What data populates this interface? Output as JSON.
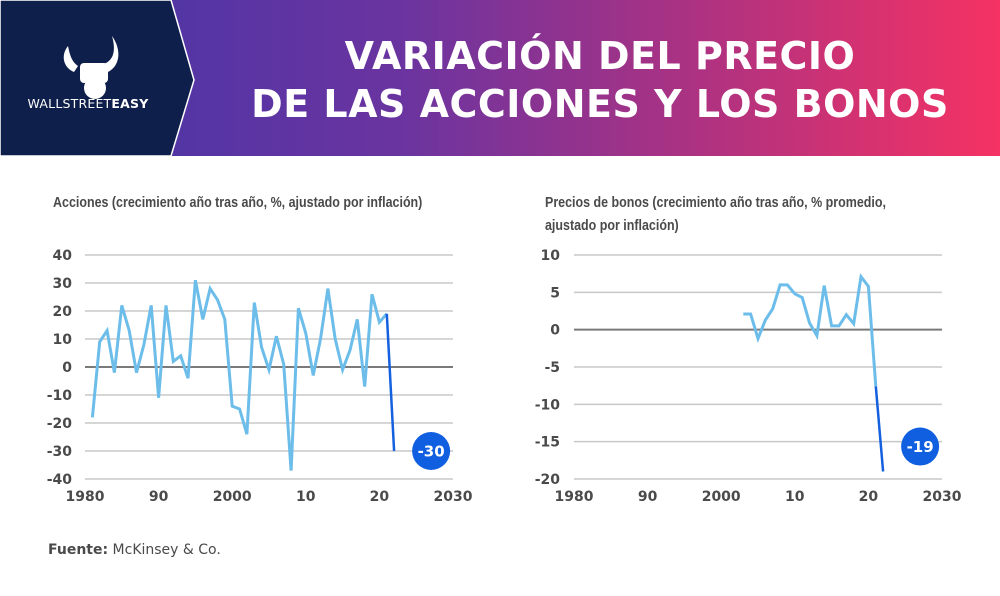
{
  "header": {
    "brand_light": "WALLSTREET",
    "brand_bold": "EASY",
    "title_line1": "VARIACIÓN DEL PRECIO",
    "title_line2": "DE LAS ACCIONES Y LOS BONOS",
    "logo_icon": "bull-fist-icon"
  },
  "footer": {
    "label": "Fuente:",
    "source": "McKinsey & Co."
  },
  "colors": {
    "header_navy": "#0f1f4b",
    "gradient_start": "#4236a8",
    "gradient_end": "#f53263",
    "series_light": "#6cbdea",
    "series_dark": "#1560de",
    "badge": "#0f5fe0",
    "grid": "#c8c8c8",
    "zero_line": "#7a7a7a",
    "text": "#4a4a4a"
  },
  "chart_data": [
    {
      "type": "line",
      "title": "Acciones (crecimiento año tras año, %, ajustado por inflación)",
      "xlabel": "",
      "ylabel": "",
      "xlim": [
        1980,
        2030
      ],
      "ylim": [
        -40,
        40
      ],
      "xticks": [
        1980,
        1990,
        2000,
        2010,
        2020,
        2030
      ],
      "xtick_labels": [
        "1980",
        "90",
        "2000",
        "10",
        "20",
        "2030"
      ],
      "yticks": [
        40,
        30,
        20,
        10,
        0,
        -10,
        -20,
        -30,
        -40
      ],
      "grid": true,
      "series": [
        {
          "name": "historical",
          "x": [
            1981,
            1982,
            1983,
            1984,
            1985,
            1986,
            1987,
            1988,
            1989,
            1990,
            1991,
            1992,
            1993,
            1994,
            1995,
            1996,
            1997,
            1998,
            1999,
            2000,
            2001,
            2002,
            2003,
            2004,
            2005,
            2006,
            2007,
            2008,
            2009,
            2010,
            2011,
            2012,
            2013,
            2014,
            2015,
            2016,
            2017,
            2018,
            2019,
            2020,
            2021
          ],
          "values": [
            -18,
            9,
            13,
            -2,
            22,
            13,
            -2,
            8,
            22,
            -11,
            22,
            2,
            4,
            -4,
            31,
            17,
            28,
            24,
            17,
            -14,
            -15,
            -24,
            23,
            7,
            -1,
            11,
            1,
            -37,
            21,
            12,
            -3,
            10,
            28,
            10,
            -1,
            6,
            17,
            -7,
            26,
            16,
            19
          ]
        },
        {
          "name": "latest",
          "x": [
            2021,
            2022
          ],
          "values": [
            19,
            -30
          ]
        }
      ],
      "annotation": {
        "label": "-30",
        "x": 2022,
        "value": -30
      }
    },
    {
      "type": "line",
      "title": "Precios de bonos (crecimiento año tras año, % promedio, ajustado por inflación)",
      "xlabel": "",
      "ylabel": "",
      "xlim": [
        1980,
        2030
      ],
      "ylim": [
        -20,
        10
      ],
      "xticks": [
        1980,
        1990,
        2000,
        2010,
        2020,
        2030
      ],
      "xtick_labels": [
        "1980",
        "90",
        "2000",
        "10",
        "20",
        "2030"
      ],
      "yticks": [
        10,
        5,
        0,
        -5,
        -10,
        -15,
        -20
      ],
      "grid": true,
      "series": [
        {
          "name": "historical",
          "x": [
            2003,
            2004,
            2005,
            2006,
            2007,
            2008,
            2009,
            2010,
            2011,
            2012,
            2013,
            2014,
            2015,
            2016,
            2017,
            2018,
            2019,
            2020,
            2021
          ],
          "values": [
            2.1,
            2.1,
            -1.2,
            1.3,
            2.8,
            6.0,
            6.0,
            4.8,
            4.3,
            0.9,
            -0.8,
            5.9,
            0.5,
            0.5,
            2.0,
            0.8,
            7.1,
            5.8,
            -7.6
          ]
        },
        {
          "name": "latest",
          "x": [
            2021,
            2022
          ],
          "values": [
            -7.6,
            -19
          ]
        }
      ],
      "annotation": {
        "label": "-19",
        "x": 2022,
        "value": -19
      }
    }
  ]
}
